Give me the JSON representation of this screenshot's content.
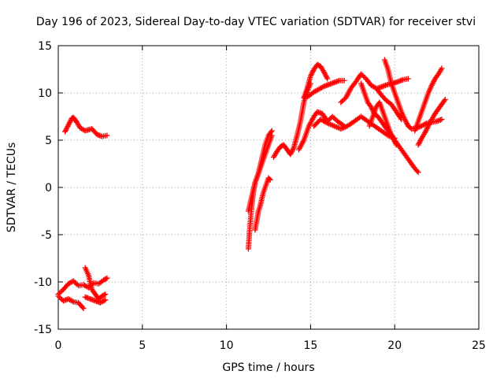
{
  "chart_data": {
    "type": "scatter",
    "title": "Day 196 of 2023, Sidereal Day-to-day VTEC variation (SDTVAR) for receiver stvi",
    "xlabel": "GPS time / hours",
    "ylabel": "SDTVAR / TECUs",
    "xlim": [
      0,
      25
    ],
    "ylim": [
      -15,
      15
    ],
    "xticks": [
      0,
      5,
      10,
      15,
      20,
      25
    ],
    "yticks": [
      -15,
      -10,
      -5,
      0,
      5,
      10,
      15
    ],
    "xtick_labels": [
      "0",
      "5",
      "10",
      "15",
      "20",
      "25"
    ],
    "ytick_labels": [
      "-15",
      "-10",
      "-5",
      "0",
      "5",
      "10",
      "15"
    ],
    "grid": true,
    "marker": "+",
    "color": "#ff0000",
    "series": [
      {
        "x": [
          0.4,
          0.6,
          0.8,
          0.9,
          1.1,
          1.3,
          1.6,
          2.0,
          2.3,
          2.6,
          2.9
        ],
        "y": [
          5.9,
          6.6,
          7.3,
          7.4,
          6.9,
          6.3,
          6.0,
          6.2,
          5.6,
          5.4,
          5.5
        ]
      },
      {
        "x": [
          0.0,
          0.3,
          0.6,
          0.9,
          1.2,
          1.5,
          1.8,
          2.1,
          2.4,
          2.7,
          2.9
        ],
        "y": [
          -11.3,
          -10.8,
          -10.2,
          -9.9,
          -10.4,
          -10.3,
          -10.6,
          -10.1,
          -10.2,
          -9.8,
          -9.6
        ]
      },
      {
        "x": [
          0.0,
          0.3,
          0.6,
          0.9,
          1.2,
          1.5
        ],
        "y": [
          -11.5,
          -12.0,
          -11.8,
          -12.1,
          -12.2,
          -12.8
        ]
      },
      {
        "x": [
          1.6,
          1.8,
          2.0,
          2.2,
          2.4,
          2.6,
          2.8
        ],
        "y": [
          -8.5,
          -9.3,
          -10.8,
          -11.3,
          -11.8,
          -11.5,
          -11.3
        ]
      },
      {
        "x": [
          1.6,
          1.9,
          2.2,
          2.5,
          2.8
        ],
        "y": [
          -11.6,
          -11.8,
          -12.0,
          -12.2,
          -11.9
        ]
      },
      {
        "x": [
          11.3,
          11.4,
          11.5,
          11.6,
          11.7,
          11.9,
          12.1,
          12.3,
          12.5,
          12.7
        ],
        "y": [
          -6.5,
          -4.0,
          -2.0,
          -0.5,
          0.5,
          1.5,
          3.0,
          4.5,
          5.5,
          6.0
        ]
      },
      {
        "x": [
          11.3,
          11.5,
          11.7,
          11.9,
          12.1,
          12.3,
          12.5,
          12.7
        ],
        "y": [
          -2.5,
          -1.0,
          0.5,
          1.5,
          2.5,
          3.5,
          4.5,
          5.5
        ]
      },
      {
        "x": [
          11.7,
          11.8,
          11.9,
          12.0,
          12.1,
          12.2,
          12.3,
          12.4,
          12.5,
          12.6
        ],
        "y": [
          -4.5,
          -3.5,
          -2.5,
          -2.0,
          -1.2,
          -0.5,
          0.0,
          0.5,
          1.0,
          0.8
        ]
      },
      {
        "x": [
          12.8,
          13.0,
          13.2,
          13.4,
          13.6,
          13.8,
          14.0,
          14.2,
          14.4,
          14.6,
          14.8,
          15.0
        ],
        "y": [
          3.2,
          3.8,
          4.3,
          4.5,
          4.0,
          3.5,
          4.2,
          5.5,
          7.0,
          9.0,
          10.2,
          11.0
        ]
      },
      {
        "x": [
          14.6,
          14.8,
          15.0,
          15.2,
          15.4,
          15.6,
          15.8,
          16.0
        ],
        "y": [
          9.5,
          10.5,
          11.8,
          12.5,
          13.0,
          12.8,
          12.2,
          11.5
        ]
      },
      {
        "x": [
          14.6,
          14.9,
          15.2,
          15.5,
          15.8,
          16.1,
          16.4,
          16.7,
          17.0
        ],
        "y": [
          9.5,
          9.7,
          10.1,
          10.4,
          10.7,
          10.9,
          11.1,
          11.3,
          11.3
        ]
      },
      {
        "x": [
          14.3,
          14.6,
          14.9,
          15.2,
          15.4,
          15.7,
          16.0,
          16.3,
          16.6,
          17.0
        ],
        "y": [
          4.0,
          5.0,
          6.5,
          7.5,
          8.0,
          7.8,
          7.0,
          7.5,
          7.0,
          6.5
        ]
      },
      {
        "x": [
          15.2,
          15.6,
          16.0,
          16.4,
          16.8,
          17.2,
          17.6,
          18.0,
          18.4,
          18.8,
          19.2,
          19.6,
          20.0
        ],
        "y": [
          6.5,
          7.2,
          6.8,
          6.5,
          6.2,
          6.5,
          7.0,
          7.5,
          7.0,
          6.5,
          6.0,
          5.5,
          5.2
        ]
      },
      {
        "x": [
          16.8,
          17.1,
          17.4,
          17.7,
          18.0,
          18.3,
          18.6,
          18.9,
          19.2,
          19.5,
          19.8,
          20.1,
          20.4
        ],
        "y": [
          9.0,
          9.5,
          10.5,
          11.2,
          12.0,
          11.5,
          10.8,
          10.5,
          9.8,
          9.2,
          8.8,
          8.0,
          7.2
        ]
      },
      {
        "x": [
          18.0,
          18.2,
          18.4,
          18.6,
          18.8,
          19.0,
          19.2,
          19.4,
          19.6,
          19.8,
          20.0,
          20.2,
          20.4,
          20.6,
          20.8,
          21.0,
          21.2,
          21.4
        ],
        "y": [
          11.0,
          10.0,
          9.0,
          8.5,
          7.8,
          7.5,
          7.0,
          6.5,
          6.0,
          5.5,
          5.0,
          4.5,
          4.0,
          3.5,
          3.0,
          2.5,
          2.0,
          1.6
        ]
      },
      {
        "x": [
          18.5,
          18.7,
          18.9,
          19.1,
          19.3,
          19.5,
          19.7,
          19.9,
          20.1
        ],
        "y": [
          6.5,
          7.5,
          8.5,
          9.0,
          8.0,
          7.0,
          6.0,
          5.2,
          4.5
        ]
      },
      {
        "x": [
          19.4,
          19.6,
          19.8,
          20.0,
          20.2,
          20.4,
          20.6,
          20.8,
          21.0,
          21.3,
          21.6,
          21.9,
          22.2,
          22.5,
          22.8
        ],
        "y": [
          13.5,
          12.5,
          11.0,
          10.0,
          9.0,
          8.0,
          7.2,
          6.5,
          6.2,
          6.3,
          6.5,
          6.8,
          6.9,
          7.0,
          7.2
        ]
      },
      {
        "x": [
          19.0,
          19.3,
          19.6,
          19.9,
          20.2,
          20.5,
          20.8
        ],
        "y": [
          10.5,
          10.7,
          10.9,
          11.0,
          11.2,
          11.4,
          11.5
        ]
      },
      {
        "x": [
          21.2,
          21.4,
          21.6,
          21.8,
          22.0,
          22.2,
          22.4,
          22.6,
          22.8
        ],
        "y": [
          6.0,
          7.0,
          8.0,
          9.0,
          10.0,
          10.8,
          11.5,
          12.0,
          12.6
        ]
      },
      {
        "x": [
          21.4,
          21.6,
          21.8,
          22.0,
          22.2,
          22.4,
          22.6,
          22.8,
          23.0
        ],
        "y": [
          4.5,
          5.2,
          5.8,
          6.5,
          7.2,
          7.8,
          8.3,
          8.8,
          9.3
        ]
      }
    ]
  }
}
